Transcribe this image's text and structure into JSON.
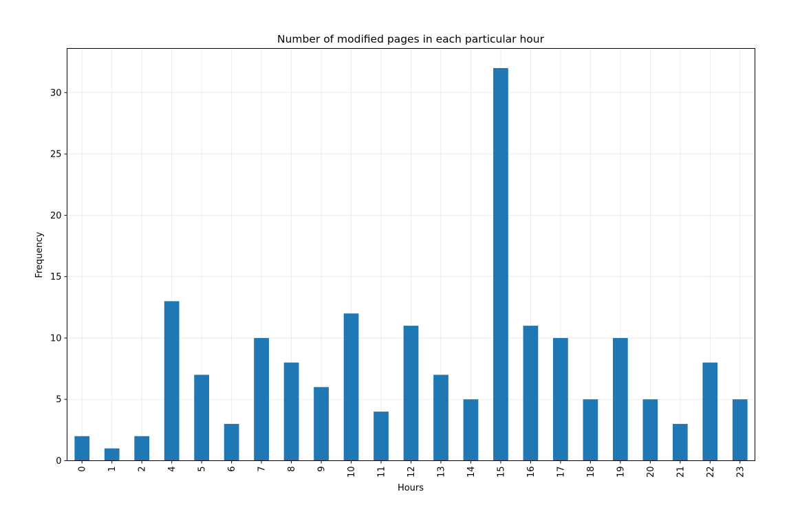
{
  "chart_data": {
    "type": "bar",
    "title": "Number of modified pages in each particular hour",
    "xlabel": "Hours",
    "ylabel": "Frequency",
    "categories": [
      "0",
      "1",
      "2",
      "4",
      "5",
      "6",
      "7",
      "8",
      "9",
      "10",
      "11",
      "12",
      "13",
      "14",
      "15",
      "16",
      "17",
      "18",
      "19",
      "20",
      "21",
      "22",
      "23"
    ],
    "values": [
      2,
      1,
      2,
      13,
      7,
      3,
      10,
      8,
      6,
      12,
      4,
      11,
      7,
      5,
      32,
      11,
      10,
      5,
      10,
      5,
      3,
      8,
      5
    ],
    "ylim": [
      0,
      33.6
    ],
    "yticks": [
      0,
      5,
      10,
      15,
      20,
      25,
      30
    ],
    "grid": true,
    "legend": "none",
    "x_tick_rotation": "vertical",
    "bar_color": "#1f77b4"
  }
}
